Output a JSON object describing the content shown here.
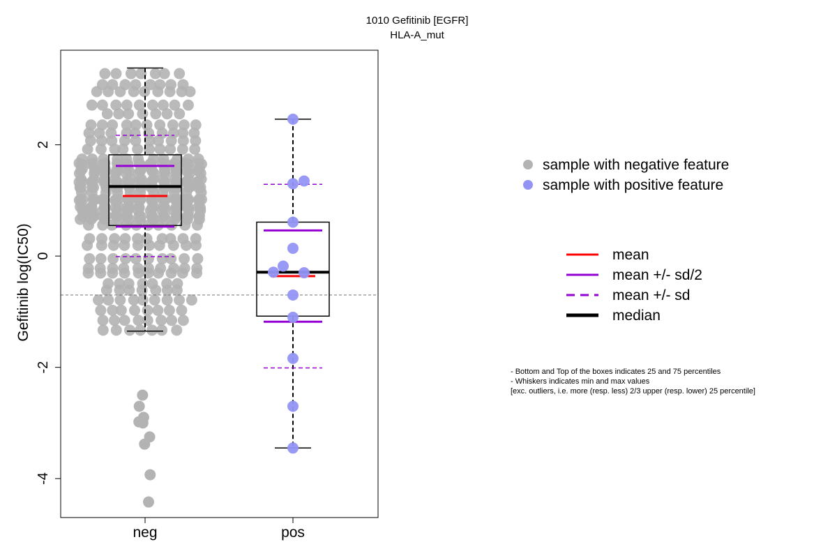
{
  "chart_data": {
    "type": "scatter",
    "title": "1010 Gefitinib [EGFR]",
    "subtitle": "HLA-A_mut",
    "ylabel": "Gefitinib log(IC50)",
    "xlabel": "",
    "categories": [
      "neg",
      "pos"
    ],
    "ylim": [
      -4.7,
      3.7
    ],
    "yticks": [
      -4,
      -2,
      0,
      2
    ],
    "reference_line": -0.7,
    "grid": false,
    "colors": {
      "neg": "#b3b3b3",
      "pos": "#9393f5",
      "mean": "#ff0000",
      "sd": "#9400d3",
      "median": "#000000"
    },
    "groups": [
      {
        "name": "neg",
        "points_note": "",
        "min": -1.35,
        "q1": 0.55,
        "median": 1.25,
        "q3": 1.82,
        "max": 3.38,
        "mean": 1.08,
        "mean_minus_half_sd": 0.53,
        "mean_plus_half_sd": 1.62,
        "mean_minus_sd": -0.01,
        "mean_plus_sd": 2.17,
        "outliers": [
          -2.5,
          -2.7,
          -2.9,
          -2.98,
          -3.0,
          -3.25,
          -3.38,
          -3.93,
          -4.42
        ]
      },
      {
        "name": "pos",
        "min": -3.45,
        "q1": -1.08,
        "median": -0.29,
        "q3": 0.61,
        "max": 2.46,
        "mean": -0.36,
        "mean_minus_half_sd": -1.18,
        "mean_plus_half_sd": 0.46,
        "mean_minus_sd": -2.01,
        "mean_plus_sd": 1.29,
        "points": [
          2.46,
          1.35,
          1.3,
          0.61,
          0.14,
          -0.18,
          -0.29,
          -0.3,
          -0.7,
          -1.1,
          -1.84,
          -2.7,
          -3.45
        ]
      }
    ],
    "legend_points": [
      {
        "label": "sample with negative feature",
        "color": "#b3b3b3"
      },
      {
        "label": "sample with positive feature",
        "color": "#9393f5"
      }
    ],
    "legend_lines": [
      {
        "label": "mean",
        "color": "#ff0000",
        "dash": false,
        "width": 3
      },
      {
        "label": "mean +/- sd/2",
        "color": "#9400d3",
        "dash": false,
        "width": 3
      },
      {
        "label": "mean +/- sd",
        "color": "#9400d3",
        "dash": true,
        "width": 3
      },
      {
        "label": "median",
        "color": "#000000",
        "dash": false,
        "width": 5
      }
    ],
    "notes": [
      "- Bottom and Top of the boxes indicates 25 and 75 percentiles",
      "- Whiskers indicates min and max values",
      "[exc. outliers, i.e. more (resp. less) 2/3 upper (resp. lower) 25 percentile]"
    ]
  }
}
